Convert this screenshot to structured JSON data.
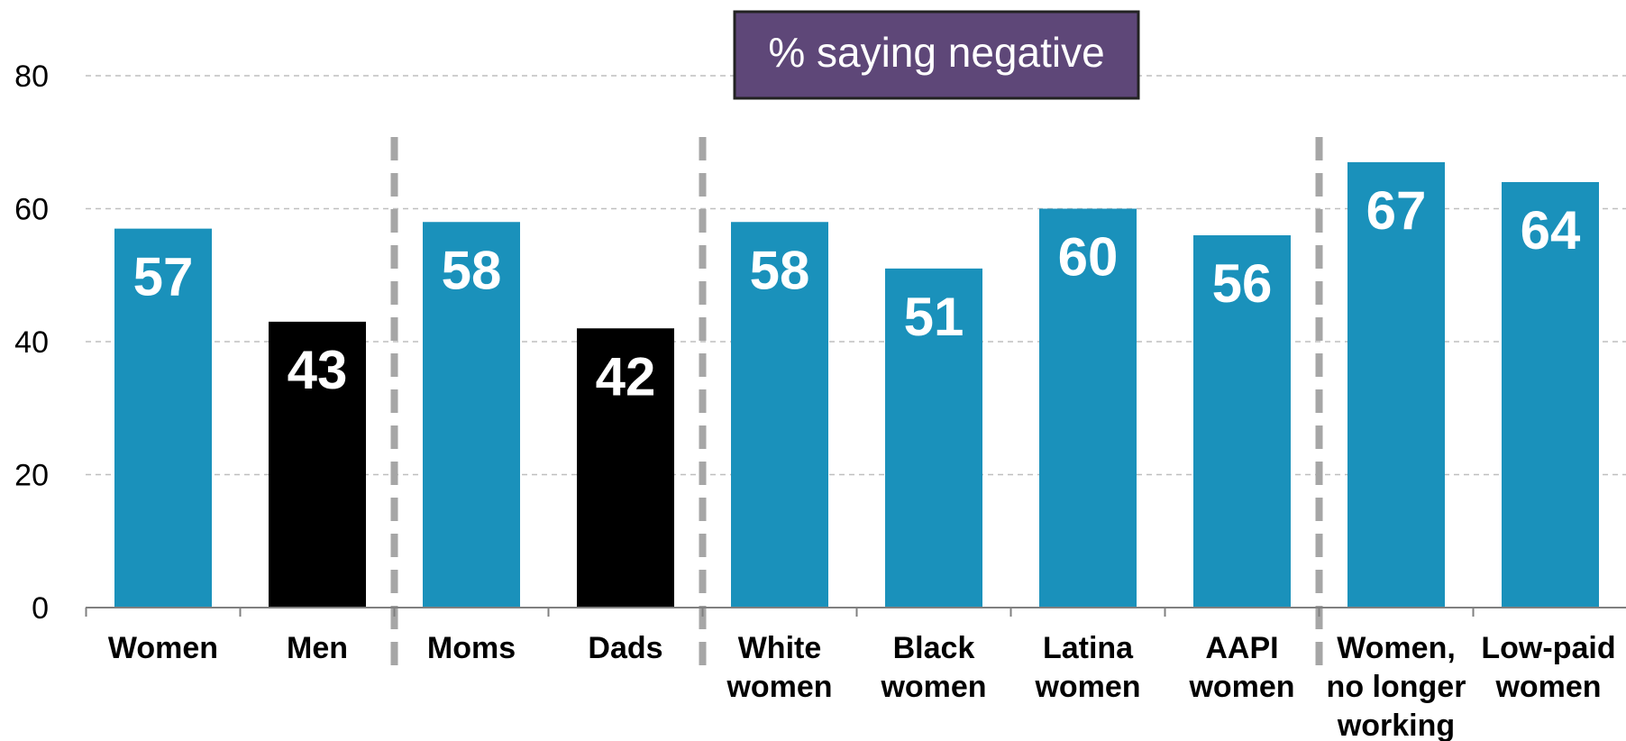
{
  "chart_data": {
    "type": "bar",
    "title": "% saying negative",
    "categories": [
      [
        "Women"
      ],
      [
        "Men"
      ],
      [
        "Moms"
      ],
      [
        "Dads"
      ],
      [
        "White",
        "women"
      ],
      [
        "Black",
        "women"
      ],
      [
        "Latina",
        "women"
      ],
      [
        "AAPI",
        "women"
      ],
      [
        "Women,",
        "no longer",
        "working"
      ],
      [
        "Low-paid",
        "women"
      ]
    ],
    "values": [
      57,
      43,
      58,
      42,
      58,
      51,
      60,
      56,
      67,
      64
    ],
    "value_labels": [
      "57",
      "43",
      "58",
      "42",
      "58",
      "51",
      "60",
      "56",
      "67",
      "64"
    ],
    "bar_colors": [
      "#1a91bb",
      "#000000",
      "#1a91bb",
      "#000000",
      "#1a91bb",
      "#1a91bb",
      "#1a91bb",
      "#1a91bb",
      "#1a91bb",
      "#1a91bb"
    ],
    "ylim": [
      0,
      80
    ],
    "yticks": [
      "0",
      "20",
      "40",
      "60",
      "80"
    ],
    "xlabel": "",
    "ylabel": "",
    "grid": true,
    "group_separators_after_index": [
      1,
      3,
      7
    ],
    "title_box_color": "#5e4778"
  }
}
